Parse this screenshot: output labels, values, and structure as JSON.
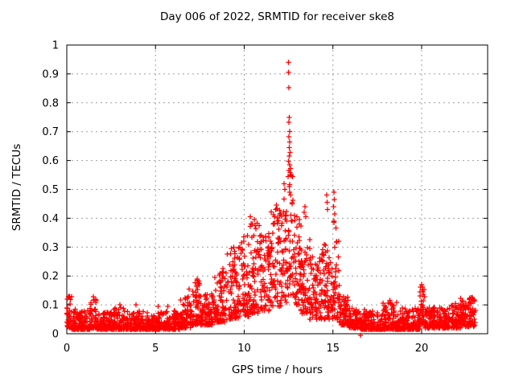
{
  "chart_data": {
    "type": "scatter",
    "title": "Day 006 of 2022, SRMTID for receiver ske8",
    "xlabel": "GPS time / hours",
    "ylabel": "SRMTID / TECUs",
    "xlim": [
      0,
      23.72
    ],
    "ylim": [
      0,
      1
    ],
    "xticks": [
      0,
      5,
      10,
      15,
      20
    ],
    "yticks": [
      0,
      0.1,
      0.2,
      0.3,
      0.4,
      0.5,
      0.6,
      0.7,
      0.8,
      0.9,
      1
    ],
    "grid": true,
    "grid_color": "#9e9e9e",
    "marker": "plus",
    "marker_color": "#ff0000",
    "legend": "none",
    "series_name": "SRMTID",
    "seed": 20220106,
    "bands_format": [
      "hour_start",
      "hour_end",
      "value_min",
      "value_max",
      "num_points",
      "skew_toward_min"
    ],
    "bands": [
      [
        0.0,
        0.3,
        0.02,
        0.13,
        35,
        2
      ],
      [
        0.3,
        1.3,
        0.015,
        0.085,
        115,
        2
      ],
      [
        1.3,
        1.7,
        0.02,
        0.13,
        46,
        2.2
      ],
      [
        1.7,
        2.6,
        0.015,
        0.075,
        104,
        2
      ],
      [
        2.6,
        3.3,
        0.015,
        0.095,
        80,
        2.2
      ],
      [
        3.3,
        4.4,
        0.015,
        0.08,
        126,
        2
      ],
      [
        4.4,
        5.6,
        0.015,
        0.075,
        138,
        2
      ],
      [
        5.6,
        6.4,
        0.015,
        0.085,
        92,
        2
      ],
      [
        6.4,
        7.0,
        0.02,
        0.13,
        70,
        2
      ],
      [
        7.0,
        7.5,
        0.03,
        0.19,
        58,
        1.8
      ],
      [
        7.5,
        8.3,
        0.03,
        0.14,
        92,
        1.8
      ],
      [
        8.3,
        9.0,
        0.04,
        0.22,
        80,
        1.6
      ],
      [
        9.0,
        9.7,
        0.05,
        0.3,
        80,
        1.5
      ],
      [
        9.7,
        10.3,
        0.06,
        0.35,
        70,
        1.4
      ],
      [
        10.3,
        10.9,
        0.07,
        0.4,
        70,
        1.4
      ],
      [
        10.9,
        11.5,
        0.08,
        0.35,
        70,
        1.3
      ],
      [
        11.5,
        12.1,
        0.09,
        0.44,
        70,
        1.3
      ],
      [
        12.1,
        12.45,
        0.1,
        0.47,
        40,
        1.2
      ],
      [
        12.45,
        12.75,
        0.13,
        0.55,
        34,
        1.0
      ],
      [
        12.75,
        13.2,
        0.1,
        0.42,
        52,
        1.3
      ],
      [
        13.2,
        13.7,
        0.07,
        0.33,
        58,
        1.5
      ],
      [
        13.7,
        14.4,
        0.05,
        0.28,
        80,
        1.6
      ],
      [
        14.4,
        15.0,
        0.05,
        0.33,
        70,
        1.5
      ],
      [
        15.0,
        15.35,
        0.05,
        0.4,
        40,
        1.4
      ],
      [
        15.35,
        15.9,
        0.03,
        0.14,
        63,
        1.8
      ],
      [
        15.9,
        16.6,
        0.02,
        0.09,
        80,
        2
      ],
      [
        16.6,
        17.6,
        0.015,
        0.085,
        115,
        2
      ],
      [
        17.6,
        18.6,
        0.015,
        0.11,
        115,
        2.2
      ],
      [
        18.6,
        19.9,
        0.015,
        0.09,
        150,
        2.2
      ],
      [
        19.9,
        20.2,
        0.03,
        0.17,
        35,
        1.6
      ],
      [
        20.2,
        21.2,
        0.02,
        0.09,
        115,
        2
      ],
      [
        21.2,
        22.2,
        0.02,
        0.1,
        115,
        2.2
      ],
      [
        22.2,
        23.05,
        0.025,
        0.125,
        98,
        2
      ]
    ],
    "notable_points_format": [
      "hour",
      "value"
    ],
    "notable_points": [
      [
        0.15,
        0.13
      ],
      [
        0.2,
        0.118
      ],
      [
        1.5,
        0.128
      ],
      [
        1.55,
        0.115
      ],
      [
        3.0,
        0.1
      ],
      [
        3.9,
        0.1
      ],
      [
        5.15,
        0.095
      ],
      [
        5.7,
        0.095
      ],
      [
        6.9,
        0.155
      ],
      [
        7.3,
        0.165
      ],
      [
        7.35,
        0.19
      ],
      [
        7.4,
        0.175
      ],
      [
        8.75,
        0.21
      ],
      [
        8.8,
        0.225
      ],
      [
        9.4,
        0.3
      ],
      [
        9.45,
        0.285
      ],
      [
        10.35,
        0.405
      ],
      [
        11.78,
        0.43
      ],
      [
        11.82,
        0.445
      ],
      [
        12.25,
        0.52
      ],
      [
        12.3,
        0.5
      ],
      [
        12.5,
        0.94
      ],
      [
        12.5,
        0.905
      ],
      [
        12.52,
        0.852
      ],
      [
        12.55,
        0.75
      ],
      [
        12.52,
        0.732
      ],
      [
        12.56,
        0.7
      ],
      [
        12.52,
        0.682
      ],
      [
        12.57,
        0.665
      ],
      [
        12.53,
        0.645
      ],
      [
        12.58,
        0.628
      ],
      [
        12.55,
        0.615
      ],
      [
        12.5,
        0.598
      ],
      [
        12.56,
        0.585
      ],
      [
        12.6,
        0.572
      ],
      [
        12.52,
        0.565
      ],
      [
        12.58,
        0.558
      ],
      [
        12.63,
        0.55
      ],
      [
        12.48,
        0.545
      ],
      [
        13.38,
        0.42
      ],
      [
        13.42,
        0.44
      ],
      [
        13.47,
        0.405
      ],
      [
        14.65,
        0.48
      ],
      [
        14.68,
        0.455
      ],
      [
        14.7,
        0.43
      ],
      [
        15.03,
        0.44
      ],
      [
        15.05,
        0.49
      ],
      [
        15.06,
        0.39
      ],
      [
        15.08,
        0.465
      ],
      [
        15.1,
        0.415
      ],
      [
        16.55,
        -0.006
      ],
      [
        18.2,
        0.115
      ],
      [
        18.25,
        0.105
      ],
      [
        20.0,
        0.17
      ],
      [
        20.03,
        0.152
      ],
      [
        20.05,
        0.162
      ],
      [
        20.08,
        0.145
      ],
      [
        21.9,
        0.105
      ],
      [
        22.8,
        0.108
      ],
      [
        22.85,
        0.125
      ],
      [
        22.9,
        0.115
      ]
    ]
  }
}
